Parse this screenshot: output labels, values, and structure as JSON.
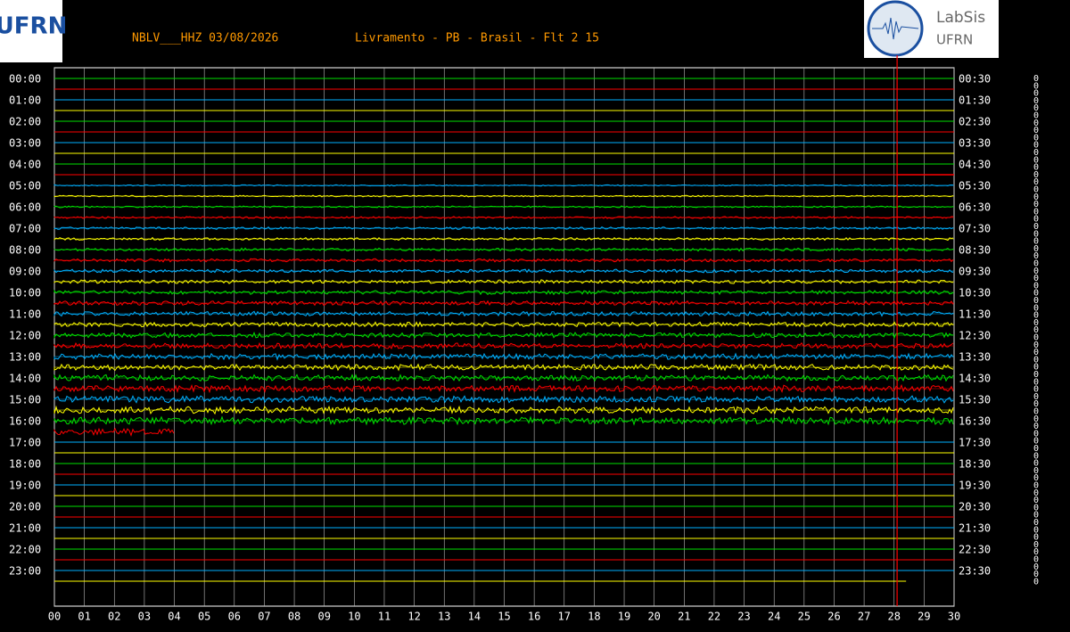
{
  "header": {
    "station": "NBLV___HHZ 03/08/2026",
    "location": "Livramento - PB - Brasil - Flt 2 15",
    "logo_left": "UFRN",
    "logo_right_title": "LabSis",
    "logo_right_subtitle": "UFRN"
  },
  "plot": {
    "left_labels": [
      "00:00",
      "01:00",
      "02:00",
      "03:00",
      "04:00",
      "05:00",
      "06:00",
      "07:00",
      "08:00",
      "09:00",
      "10:00",
      "11:00",
      "12:00",
      "13:00",
      "14:00",
      "15:00",
      "16:00",
      "17:00",
      "18:00",
      "19:00",
      "20:00",
      "21:00",
      "22:00",
      "23:00"
    ],
    "right_labels": [
      "00:30",
      "01:30",
      "02:30",
      "03:30",
      "04:30",
      "05:30",
      "06:30",
      "07:30",
      "08:30",
      "09:30",
      "10:30",
      "11:30",
      "12:30",
      "13:30",
      "14:30",
      "15:30",
      "16:30",
      "17:30",
      "18:30",
      "19:30",
      "20:30",
      "21:30",
      "22:30",
      "23:30"
    ],
    "x_labels": [
      "00",
      "01",
      "02",
      "03",
      "04",
      "05",
      "06",
      "07",
      "08",
      "09",
      "10",
      "11",
      "12",
      "13",
      "14",
      "15",
      "16",
      "17",
      "18",
      "19",
      "20",
      "21",
      "22",
      "23",
      "24",
      "25",
      "26",
      "27",
      "28",
      "29",
      "30"
    ]
  },
  "right_marks": [
    "0",
    "0",
    "0",
    "0",
    "0",
    "0",
    "0",
    "0",
    "0",
    "0",
    "0",
    "0",
    "0",
    "0",
    "0",
    "0",
    "0",
    "0",
    "0",
    "0",
    "0",
    "0",
    "0",
    "0",
    "0",
    "0",
    "0",
    "0",
    "0",
    "0",
    "0",
    "0",
    "0",
    "0",
    "0",
    "0",
    "0",
    "0",
    "0",
    "0",
    "0",
    "0",
    "0",
    "0",
    "0",
    "0",
    "0",
    "0",
    "0",
    "0",
    "0",
    "0",
    "0",
    "0",
    "0",
    "0",
    "0",
    "0",
    "0",
    "0",
    "0",
    "0",
    "0",
    "0",
    "0",
    "0",
    "0",
    "0",
    "0"
  ]
}
